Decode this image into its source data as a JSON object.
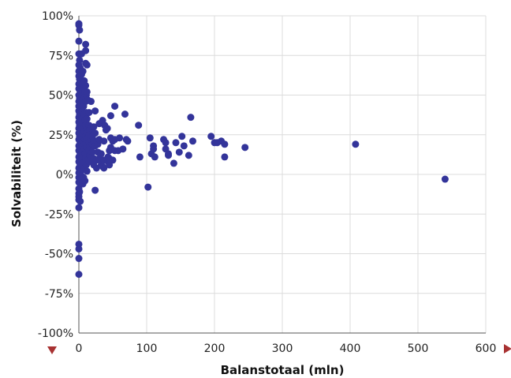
{
  "chart_data": {
    "type": "scatter",
    "xlabel": "Balanstotaal (mln)",
    "ylabel": "Solvabiliteit (%)",
    "xlim": [
      0,
      600
    ],
    "ylim": [
      -100,
      100
    ],
    "x_ticks": [
      "0",
      "100",
      "200",
      "300",
      "400",
      "500",
      "600"
    ],
    "y_ticks": [
      "100%",
      "75%",
      "50%",
      "25%",
      "0%",
      "-25%",
      "-50%",
      "-75%",
      "-100%"
    ],
    "grid": true,
    "marker_color": "#33349a",
    "arrow_color": "#a83232",
    "series": [
      {
        "points": [
          [
            0,
            94
          ],
          [
            0,
            95
          ],
          [
            0,
            84
          ],
          [
            0,
            76
          ],
          [
            0,
            69
          ],
          [
            0,
            65
          ],
          [
            0,
            62
          ],
          [
            0,
            57
          ],
          [
            0,
            54
          ],
          [
            0,
            50
          ],
          [
            0,
            46
          ],
          [
            0,
            43
          ],
          [
            0,
            40
          ],
          [
            0,
            36
          ],
          [
            0,
            33
          ],
          [
            0,
            29
          ],
          [
            0,
            26
          ],
          [
            0,
            22
          ],
          [
            0,
            18
          ],
          [
            0,
            15
          ],
          [
            0,
            11
          ],
          [
            0,
            8
          ],
          [
            0,
            4
          ],
          [
            0,
            1
          ],
          [
            0,
            -2
          ],
          [
            0,
            -5
          ],
          [
            0,
            -9
          ],
          [
            0,
            -12
          ],
          [
            0,
            -14
          ],
          [
            0,
            -16
          ],
          [
            0,
            -21
          ],
          [
            0,
            -44
          ],
          [
            0,
            -47
          ],
          [
            0,
            -53
          ],
          [
            0,
            -63
          ],
          [
            1,
            91
          ],
          [
            1,
            72
          ],
          [
            1,
            60
          ],
          [
            1,
            48
          ],
          [
            1,
            38
          ],
          [
            1,
            31
          ],
          [
            1,
            24
          ],
          [
            1,
            17
          ],
          [
            1,
            9
          ],
          [
            1,
            3
          ],
          [
            1,
            -4
          ],
          [
            1,
            -11
          ],
          [
            2,
            67
          ],
          [
            2,
            52
          ],
          [
            2,
            42
          ],
          [
            2,
            35
          ],
          [
            2,
            27
          ],
          [
            2,
            20
          ],
          [
            2,
            13
          ],
          [
            2,
            6
          ],
          [
            2,
            -3
          ],
          [
            2,
            -17
          ],
          [
            3,
            58
          ],
          [
            3,
            45
          ],
          [
            3,
            30
          ],
          [
            3,
            21
          ],
          [
            3,
            12
          ],
          [
            3,
            2
          ],
          [
            4,
            76
          ],
          [
            4,
            63
          ],
          [
            4,
            49
          ],
          [
            4,
            37
          ],
          [
            4,
            28
          ],
          [
            4,
            19
          ],
          [
            4,
            10
          ],
          [
            4,
            -1
          ],
          [
            5,
            55
          ],
          [
            5,
            40
          ],
          [
            5,
            32
          ],
          [
            5,
            23
          ],
          [
            5,
            14
          ],
          [
            5,
            5
          ],
          [
            6,
            65
          ],
          [
            6,
            47
          ],
          [
            6,
            35
          ],
          [
            6,
            26
          ],
          [
            6,
            18
          ],
          [
            6,
            7
          ],
          [
            6,
            -6
          ],
          [
            7,
            57
          ],
          [
            7,
            43
          ],
          [
            7,
            29
          ],
          [
            7,
            21
          ],
          [
            7,
            11
          ],
          [
            7,
            -2
          ],
          [
            8,
            59
          ],
          [
            8,
            48
          ],
          [
            8,
            38
          ],
          [
            8,
            27
          ],
          [
            8,
            16
          ],
          [
            8,
            4
          ],
          [
            9,
            52
          ],
          [
            9,
            34
          ],
          [
            9,
            22
          ],
          [
            9,
            13
          ],
          [
            9,
            -4
          ],
          [
            10,
            82
          ],
          [
            10,
            78
          ],
          [
            10,
            70
          ],
          [
            10,
            56
          ],
          [
            10,
            46
          ],
          [
            10,
            31
          ],
          [
            10,
            24
          ],
          [
            10,
            19
          ],
          [
            10,
            10
          ],
          [
            11,
            50
          ],
          [
            11,
            39
          ],
          [
            11,
            28
          ],
          [
            11,
            17
          ],
          [
            11,
            6
          ],
          [
            12,
            69
          ],
          [
            12,
            52
          ],
          [
            12,
            35
          ],
          [
            12,
            26
          ],
          [
            12,
            21
          ],
          [
            12,
            14
          ],
          [
            12,
            2
          ],
          [
            13,
            47
          ],
          [
            13,
            23
          ],
          [
            13,
            9
          ],
          [
            15,
            39
          ],
          [
            15,
            31
          ],
          [
            15,
            25
          ],
          [
            15,
            20
          ],
          [
            15,
            15
          ],
          [
            15,
            8
          ],
          [
            16,
            18
          ],
          [
            16,
            28
          ],
          [
            16,
            12
          ],
          [
            18,
            46
          ],
          [
            18,
            29
          ],
          [
            18,
            22
          ],
          [
            18,
            17
          ],
          [
            20,
            24
          ],
          [
            20,
            19
          ],
          [
            20,
            14
          ],
          [
            22,
            30
          ],
          [
            22,
            21
          ],
          [
            22,
            10
          ],
          [
            22,
            6
          ],
          [
            24,
            40
          ],
          [
            24,
            26
          ],
          [
            24,
            18
          ],
          [
            24,
            -10
          ],
          [
            26,
            9
          ],
          [
            26,
            4
          ],
          [
            26,
            21
          ],
          [
            28,
            19
          ],
          [
            28,
            14
          ],
          [
            30,
            32
          ],
          [
            30,
            22
          ],
          [
            30,
            10
          ],
          [
            33,
            13
          ],
          [
            33,
            6
          ],
          [
            35,
            34
          ],
          [
            35,
            5
          ],
          [
            37,
            21
          ],
          [
            37,
            9
          ],
          [
            37,
            4
          ],
          [
            38,
            31
          ],
          [
            40,
            28
          ],
          [
            42,
            29
          ],
          [
            43,
            11
          ],
          [
            43,
            8
          ],
          [
            45,
            15
          ],
          [
            45,
            6
          ],
          [
            45,
            10
          ],
          [
            47,
            37
          ],
          [
            47,
            23
          ],
          [
            47,
            17
          ],
          [
            50,
            21
          ],
          [
            50,
            9
          ],
          [
            53,
            43
          ],
          [
            53,
            22
          ],
          [
            53,
            15
          ],
          [
            58,
            15
          ],
          [
            60,
            23
          ],
          [
            65,
            16
          ],
          [
            68,
            38
          ],
          [
            70,
            22
          ],
          [
            72,
            21
          ],
          [
            88,
            31
          ],
          [
            90,
            11
          ],
          [
            102,
            -8
          ],
          [
            105,
            23
          ],
          [
            107,
            13
          ],
          [
            110,
            18
          ],
          [
            110,
            16
          ],
          [
            112,
            11
          ],
          [
            125,
            22
          ],
          [
            128,
            20
          ],
          [
            128,
            16
          ],
          [
            132,
            13
          ],
          [
            132,
            12
          ],
          [
            140,
            7
          ],
          [
            143,
            20
          ],
          [
            148,
            14
          ],
          [
            152,
            24
          ],
          [
            155,
            18
          ],
          [
            162,
            12
          ],
          [
            165,
            36
          ],
          [
            168,
            21
          ],
          [
            195,
            24
          ],
          [
            200,
            20
          ],
          [
            204,
            20
          ],
          [
            210,
            21
          ],
          [
            215,
            19
          ],
          [
            215,
            11
          ],
          [
            245,
            17
          ],
          [
            408,
            19
          ],
          [
            540,
            -3
          ]
        ]
      }
    ]
  }
}
